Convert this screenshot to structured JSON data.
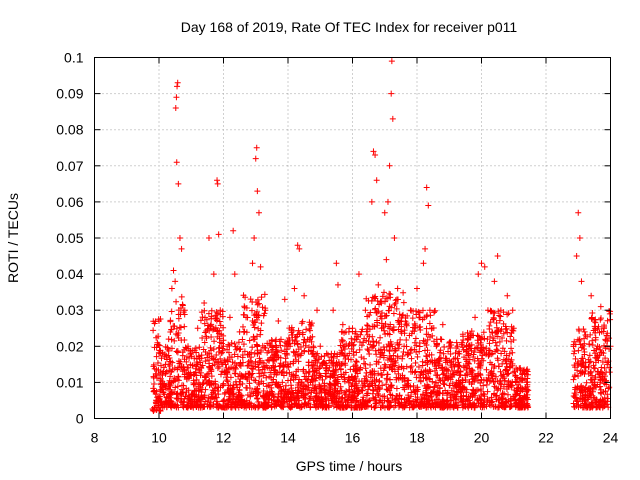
{
  "chart_data": {
    "type": "scatter",
    "title": "Day 168 of 2019, Rate Of TEC Index for receiver p011",
    "xlabel": "GPS time / hours",
    "ylabel": "ROTI / TECUs",
    "xlim": [
      8,
      24
    ],
    "ylim": [
      0,
      0.1
    ],
    "xticks": [
      "8",
      "10",
      "12",
      "14",
      "16",
      "18",
      "20",
      "22",
      "24"
    ],
    "yticks": [
      "0",
      "0.01",
      "0.02",
      "0.03",
      "0.04",
      "0.05",
      "0.06",
      "0.07",
      "0.08",
      "0.09",
      "0.1"
    ],
    "grid": true,
    "marker": "plus",
    "color": "#ff0000",
    "series": [
      {
        "points": [
          [
            9.85,
            0.003
          ],
          [
            9.9,
            0.012
          ],
          [
            9.95,
            0.021
          ],
          [
            10.0,
            0.027
          ],
          [
            10.05,
            0.018
          ],
          [
            10.1,
            0.008
          ],
          [
            10.2,
            0.015
          ],
          [
            10.3,
            0.022
          ],
          [
            10.4,
            0.036
          ],
          [
            10.45,
            0.041
          ],
          [
            10.5,
            0.038
          ],
          [
            10.52,
            0.086
          ],
          [
            10.54,
            0.089
          ],
          [
            10.56,
            0.092
          ],
          [
            10.58,
            0.093
          ],
          [
            10.55,
            0.071
          ],
          [
            10.6,
            0.065
          ],
          [
            10.65,
            0.05
          ],
          [
            10.7,
            0.047
          ],
          [
            10.8,
            0.03
          ],
          [
            10.9,
            0.02
          ],
          [
            11.0,
            0.012
          ],
          [
            11.2,
            0.025
          ],
          [
            11.4,
            0.032
          ],
          [
            11.55,
            0.05
          ],
          [
            11.7,
            0.04
          ],
          [
            11.8,
            0.066
          ],
          [
            11.82,
            0.065
          ],
          [
            11.85,
            0.051
          ],
          [
            11.9,
            0.03
          ],
          [
            12.0,
            0.02
          ],
          [
            12.2,
            0.028
          ],
          [
            12.3,
            0.052
          ],
          [
            12.35,
            0.04
          ],
          [
            12.5,
            0.024
          ],
          [
            12.7,
            0.028
          ],
          [
            12.9,
            0.043
          ],
          [
            12.95,
            0.05
          ],
          [
            13.0,
            0.072
          ],
          [
            13.03,
            0.075
          ],
          [
            13.05,
            0.063
          ],
          [
            13.1,
            0.057
          ],
          [
            13.15,
            0.042
          ],
          [
            13.3,
            0.03
          ],
          [
            13.5,
            0.02
          ],
          [
            13.7,
            0.027
          ],
          [
            13.9,
            0.033
          ],
          [
            14.0,
            0.02
          ],
          [
            14.2,
            0.036
          ],
          [
            14.3,
            0.048
          ],
          [
            14.35,
            0.047
          ],
          [
            14.5,
            0.034
          ],
          [
            14.7,
            0.026
          ],
          [
            14.9,
            0.03
          ],
          [
            15.0,
            0.02
          ],
          [
            15.2,
            0.018
          ],
          [
            15.4,
            0.03
          ],
          [
            15.5,
            0.043
          ],
          [
            15.55,
            0.037
          ],
          [
            15.7,
            0.026
          ],
          [
            15.9,
            0.018
          ],
          [
            16.0,
            0.025
          ],
          [
            16.2,
            0.04
          ],
          [
            16.4,
            0.03
          ],
          [
            16.6,
            0.06
          ],
          [
            16.65,
            0.074
          ],
          [
            16.7,
            0.073
          ],
          [
            16.75,
            0.066
          ],
          [
            16.8,
            0.037
          ],
          [
            16.9,
            0.025
          ],
          [
            17.0,
            0.057
          ],
          [
            17.05,
            0.044
          ],
          [
            17.1,
            0.06
          ],
          [
            17.15,
            0.07
          ],
          [
            17.2,
            0.09
          ],
          [
            17.22,
            0.099
          ],
          [
            17.25,
            0.083
          ],
          [
            17.3,
            0.05
          ],
          [
            17.4,
            0.036
          ],
          [
            17.6,
            0.02
          ],
          [
            17.8,
            0.03
          ],
          [
            18.0,
            0.036
          ],
          [
            18.2,
            0.043
          ],
          [
            18.25,
            0.047
          ],
          [
            18.3,
            0.064
          ],
          [
            18.35,
            0.059
          ],
          [
            18.4,
            0.03
          ],
          [
            18.6,
            0.02
          ],
          [
            18.8,
            0.026
          ],
          [
            19.0,
            0.02
          ],
          [
            19.2,
            0.015
          ],
          [
            19.4,
            0.021
          ],
          [
            19.6,
            0.02
          ],
          [
            19.8,
            0.028
          ],
          [
            19.9,
            0.04
          ],
          [
            20.0,
            0.043
          ],
          [
            20.1,
            0.042
          ],
          [
            20.2,
            0.03
          ],
          [
            20.4,
            0.038
          ],
          [
            20.5,
            0.045
          ],
          [
            20.6,
            0.03
          ],
          [
            20.8,
            0.034
          ],
          [
            21.0,
            0.025
          ],
          [
            21.2,
            0.014
          ],
          [
            21.4,
            0.01
          ],
          [
            22.9,
            0.012
          ],
          [
            22.95,
            0.045
          ],
          [
            23.0,
            0.057
          ],
          [
            23.05,
            0.05
          ],
          [
            23.1,
            0.038
          ],
          [
            23.2,
            0.024
          ],
          [
            23.4,
            0.034
          ],
          [
            23.5,
            0.027
          ],
          [
            23.6,
            0.02
          ],
          [
            23.7,
            0.031
          ],
          [
            23.8,
            0.025
          ],
          [
            23.9,
            0.015
          ],
          [
            24.0,
            0.02
          ]
        ],
        "envelopes": [
          [
            9.8,
            10.05,
            0.002,
            0.028
          ],
          [
            10.05,
            10.35,
            0.003,
            0.02
          ],
          [
            10.35,
            10.8,
            0.003,
            0.035
          ],
          [
            10.8,
            11.3,
            0.003,
            0.02
          ],
          [
            11.3,
            12.0,
            0.003,
            0.03
          ],
          [
            12.0,
            12.6,
            0.003,
            0.022
          ],
          [
            12.6,
            13.3,
            0.003,
            0.035
          ],
          [
            13.3,
            14.0,
            0.003,
            0.022
          ],
          [
            14.0,
            14.8,
            0.003,
            0.027
          ],
          [
            14.8,
            15.6,
            0.003,
            0.018
          ],
          [
            15.6,
            16.4,
            0.003,
            0.025
          ],
          [
            16.4,
            17.6,
            0.003,
            0.035
          ],
          [
            17.6,
            18.6,
            0.003,
            0.03
          ],
          [
            18.6,
            19.4,
            0.003,
            0.022
          ],
          [
            19.4,
            20.2,
            0.003,
            0.025
          ],
          [
            20.2,
            21.0,
            0.003,
            0.03
          ],
          [
            21.0,
            21.45,
            0.003,
            0.014
          ],
          [
            22.85,
            23.4,
            0.003,
            0.025
          ],
          [
            23.4,
            24.0,
            0.003,
            0.03
          ]
        ]
      }
    ]
  }
}
